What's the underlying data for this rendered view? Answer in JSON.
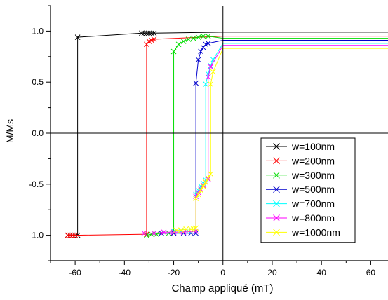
{
  "chart_data": {
    "type": "line",
    "title": "",
    "xlabel": "Champ appliqué (mT)",
    "ylabel": "M/Ms",
    "xlim": [
      -70,
      67
    ],
    "ylim": [
      -1.25,
      1.25
    ],
    "x_ticks": [
      -60,
      -40,
      -20,
      0,
      20,
      40,
      60
    ],
    "y_ticks": [
      -1.0,
      -0.5,
      0.0,
      0.5,
      1.0
    ],
    "x_tick_labels": [
      "-60",
      "-40",
      "-20",
      "0",
      "20",
      "40",
      "60"
    ],
    "y_tick_labels": [
      "-1.0",
      "-0.5",
      "0.0",
      "0.5",
      "1.0"
    ],
    "grid": false,
    "marker": "x",
    "reference_lines": {
      "x": 0,
      "y": 0
    },
    "legend_position": "lower-right",
    "series": [
      {
        "name": "w=100nm",
        "color": "#000000",
        "points": [
          [
            -63,
            -1.0
          ],
          [
            -62,
            -1.0
          ],
          [
            -61,
            -1.0
          ],
          [
            -60,
            -1.0
          ],
          [
            -59,
            -1.0
          ],
          [
            -59,
            0.94
          ],
          [
            -33,
            0.98
          ],
          [
            -32,
            0.98
          ],
          [
            -31,
            0.98
          ],
          [
            -30,
            0.98
          ],
          [
            -29,
            0.98
          ],
          [
            -28,
            0.98
          ],
          [
            0,
            0.99
          ],
          [
            67,
            0.99
          ]
        ]
      },
      {
        "name": "w=200nm",
        "color": "#ff0000",
        "points": [
          [
            -63,
            -1.0
          ],
          [
            -62,
            -1.0
          ],
          [
            -61,
            -1.0
          ],
          [
            -60,
            -1.0
          ],
          [
            -31,
            -0.99
          ],
          [
            -31,
            0.87
          ],
          [
            -30,
            0.9
          ],
          [
            -29,
            0.91
          ],
          [
            -28,
            0.92
          ],
          [
            0,
            0.95
          ],
          [
            67,
            0.95
          ]
        ]
      },
      {
        "name": "w=300nm",
        "color": "#00dd00",
        "points": [
          [
            -31,
            -1.0
          ],
          [
            -29,
            -0.99
          ],
          [
            -27,
            -0.99
          ],
          [
            -25,
            -0.98
          ],
          [
            -22,
            -0.98
          ],
          [
            -20,
            -0.98
          ],
          [
            -20,
            0.8
          ],
          [
            -18,
            0.87
          ],
          [
            -16,
            0.9
          ],
          [
            -14,
            0.92
          ],
          [
            -12,
            0.93
          ],
          [
            -10,
            0.94
          ],
          [
            -8,
            0.95
          ],
          [
            -6,
            0.95
          ],
          [
            0,
            0.93
          ],
          [
            67,
            0.93
          ]
        ]
      },
      {
        "name": "w=500nm",
        "color": "#0000cc",
        "points": [
          [
            -25,
            -0.98
          ],
          [
            -20,
            -0.98
          ],
          [
            -16,
            -0.98
          ],
          [
            -13,
            -0.98
          ],
          [
            -11,
            -0.98
          ],
          [
            -11,
            0.49
          ],
          [
            -10,
            0.72
          ],
          [
            -9,
            0.8
          ],
          [
            -8,
            0.84
          ],
          [
            -7,
            0.87
          ],
          [
            -6,
            0.88
          ],
          [
            0,
            0.91
          ],
          [
            67,
            0.91
          ]
        ]
      },
      {
        "name": "w=700nm",
        "color": "#00ffff",
        "points": [
          [
            -20,
            -0.96
          ],
          [
            -17,
            -0.96
          ],
          [
            -14,
            -0.96
          ],
          [
            -11,
            -0.96
          ],
          [
            -11,
            -0.6
          ],
          [
            -10,
            -0.56
          ],
          [
            -9,
            -0.52
          ],
          [
            -8,
            -0.49
          ],
          [
            -7,
            -0.46
          ],
          [
            -7,
            0.48
          ],
          [
            -6,
            0.58
          ],
          [
            -5,
            0.66
          ],
          [
            -4,
            0.72
          ],
          [
            0,
            0.88
          ],
          [
            67,
            0.88
          ]
        ]
      },
      {
        "name": "w=800nm",
        "color": "#ff00ff",
        "points": [
          [
            -32,
            -0.98
          ],
          [
            -28,
            -0.98
          ],
          [
            -24,
            -0.97
          ],
          [
            -20,
            -0.97
          ],
          [
            -16,
            -0.97
          ],
          [
            -11,
            -0.96
          ],
          [
            -11,
            -0.62
          ],
          [
            -10,
            -0.58
          ],
          [
            -9,
            -0.55
          ],
          [
            -8,
            -0.51
          ],
          [
            -7,
            -0.48
          ],
          [
            -6,
            -0.45
          ],
          [
            -6,
            0.55
          ],
          [
            -5,
            0.65
          ],
          [
            0,
            0.86
          ],
          [
            67,
            0.86
          ]
        ]
      },
      {
        "name": "w=1000nm",
        "color": "#ffff00",
        "points": [
          [
            -19,
            -0.95
          ],
          [
            -17,
            -0.95
          ],
          [
            -15,
            -0.94
          ],
          [
            -13,
            -0.94
          ],
          [
            -12,
            -0.94
          ],
          [
            -11,
            -0.93
          ],
          [
            -11,
            -0.64
          ],
          [
            -10,
            -0.6
          ],
          [
            -9,
            -0.56
          ],
          [
            -8,
            -0.52
          ],
          [
            -7,
            -0.48
          ],
          [
            -6,
            -0.44
          ],
          [
            -5,
            -0.4
          ],
          [
            -5,
            0.48
          ],
          [
            -4,
            0.6
          ],
          [
            0,
            0.83
          ],
          [
            67,
            0.83
          ]
        ]
      }
    ]
  }
}
